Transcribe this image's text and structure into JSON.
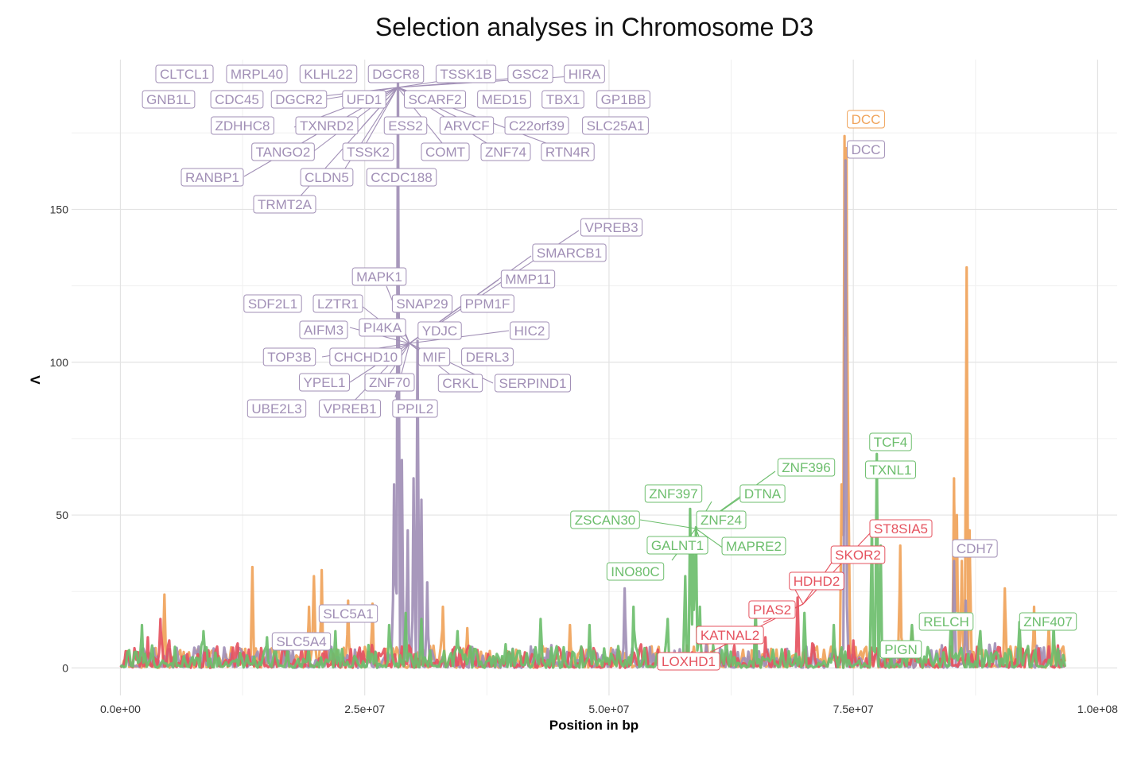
{
  "chart_data": {
    "type": "line",
    "title": "Selection analyses in Chromosome D3",
    "xlabel": "Position in bp",
    "ylabel": "Λ",
    "xlim": [
      -5000000,
      102000000
    ],
    "ylim": [
      -9,
      199
    ],
    "x_ticks": [
      {
        "value": 0,
        "label": "0.0e+00"
      },
      {
        "value": 25000000,
        "label": "2.5e+07"
      },
      {
        "value": 50000000,
        "label": "5.0e+07"
      },
      {
        "value": 75000000,
        "label": "7.5e+07"
      },
      {
        "value": 100000000,
        "label": "1.0e+08"
      }
    ],
    "y_ticks": [
      {
        "value": 0,
        "label": "0"
      },
      {
        "value": 50,
        "label": "50"
      },
      {
        "value": 100,
        "label": "100"
      },
      {
        "value": 150,
        "label": "150"
      }
    ],
    "grid": true,
    "legend": "none",
    "series": [
      {
        "color": "#F0A35A",
        "peaks": [
          [
            4500000,
            24
          ],
          [
            13500000,
            33
          ],
          [
            19300000,
            20
          ],
          [
            19800000,
            30
          ],
          [
            20600000,
            32
          ],
          [
            23300000,
            22
          ],
          [
            25800000,
            21
          ],
          [
            33000000,
            20
          ],
          [
            35500000,
            13
          ],
          [
            46000000,
            14
          ],
          [
            60000000,
            12
          ],
          [
            73800000,
            60
          ],
          [
            74100000,
            174
          ],
          [
            74300000,
            170
          ],
          [
            74500000,
            60
          ],
          [
            79800000,
            40
          ],
          [
            81000000,
            12
          ],
          [
            85300000,
            62
          ],
          [
            85600000,
            50
          ],
          [
            86100000,
            35
          ],
          [
            86600000,
            131
          ],
          [
            86900000,
            45
          ],
          [
            90500000,
            26
          ],
          [
            93500000,
            20
          ],
          [
            95000000,
            14
          ]
        ]
      },
      {
        "color": "#A18FB6",
        "peaks": [
          [
            2500000,
            5
          ],
          [
            8000000,
            7
          ],
          [
            15000000,
            6
          ],
          [
            24000000,
            6
          ],
          [
            28000000,
            60
          ],
          [
            28400000,
            195
          ],
          [
            28800000,
            68
          ],
          [
            29400000,
            45
          ],
          [
            30000000,
            62
          ],
          [
            30400000,
            107
          ],
          [
            30800000,
            55
          ],
          [
            31400000,
            28
          ],
          [
            34000000,
            6
          ],
          [
            42000000,
            7
          ],
          [
            51600000,
            26
          ],
          [
            60000000,
            7
          ],
          [
            70000000,
            6
          ],
          [
            74200000,
            166
          ],
          [
            85300000,
            35
          ],
          [
            86500000,
            22
          ],
          [
            89500000,
            8
          ],
          [
            95000000,
            6
          ]
        ]
      },
      {
        "color": "#E5535F",
        "peaks": [
          [
            2800000,
            10
          ],
          [
            4100000,
            16
          ],
          [
            5000000,
            9
          ],
          [
            12000000,
            8
          ],
          [
            17000000,
            8
          ],
          [
            21000000,
            7
          ],
          [
            34000000,
            6
          ],
          [
            45000000,
            6
          ],
          [
            55000000,
            6
          ],
          [
            62000000,
            5
          ],
          [
            66000000,
            10
          ],
          [
            69300000,
            23
          ],
          [
            70800000,
            8
          ],
          [
            75000000,
            9
          ],
          [
            78500000,
            6
          ],
          [
            85000000,
            7
          ],
          [
            90000000,
            6
          ],
          [
            95000000,
            7
          ]
        ]
      },
      {
        "color": "#6DBE6D",
        "peaks": [
          [
            2200000,
            14
          ],
          [
            8500000,
            12
          ],
          [
            15000000,
            10
          ],
          [
            22000000,
            12
          ],
          [
            27500000,
            14
          ],
          [
            29200000,
            18
          ],
          [
            30800000,
            16
          ],
          [
            34500000,
            12
          ],
          [
            43000000,
            16
          ],
          [
            48000000,
            14
          ],
          [
            52500000,
            20
          ],
          [
            56000000,
            16
          ],
          [
            57800000,
            30
          ],
          [
            58300000,
            52
          ],
          [
            58600000,
            38
          ],
          [
            58900000,
            46
          ],
          [
            59300000,
            20
          ],
          [
            62000000,
            12
          ],
          [
            65000000,
            20
          ],
          [
            70000000,
            18
          ],
          [
            73000000,
            14
          ],
          [
            76900000,
            48
          ],
          [
            77400000,
            70
          ],
          [
            77800000,
            40
          ],
          [
            81000000,
            14
          ],
          [
            85000000,
            17
          ],
          [
            88000000,
            12
          ],
          [
            92000000,
            15
          ],
          [
            95500000,
            14
          ]
        ]
      }
    ],
    "labels": [
      {
        "text": "CLTCL1",
        "color": "#A18FB6"
      },
      {
        "text": "MRPL40",
        "color": "#A18FB6"
      },
      {
        "text": "KLHL22",
        "color": "#A18FB6"
      },
      {
        "text": "DGCR8",
        "color": "#A18FB6"
      },
      {
        "text": "TSSK1B",
        "color": "#A18FB6"
      },
      {
        "text": "GSC2",
        "color": "#A18FB6"
      },
      {
        "text": "HIRA",
        "color": "#A18FB6"
      },
      {
        "text": "GNB1L",
        "color": "#A18FB6"
      },
      {
        "text": "CDC45",
        "color": "#A18FB6"
      },
      {
        "text": "DGCR2",
        "color": "#A18FB6"
      },
      {
        "text": "UFD1",
        "color": "#A18FB6"
      },
      {
        "text": "SCARF2",
        "color": "#A18FB6"
      },
      {
        "text": "MED15",
        "color": "#A18FB6"
      },
      {
        "text": "TBX1",
        "color": "#A18FB6"
      },
      {
        "text": "GP1BB",
        "color": "#A18FB6"
      },
      {
        "text": "ZDHHC8",
        "color": "#A18FB6"
      },
      {
        "text": "TXNRD2",
        "color": "#A18FB6"
      },
      {
        "text": "ESS2",
        "color": "#A18FB6"
      },
      {
        "text": "ARVCF",
        "color": "#A18FB6"
      },
      {
        "text": "C22orf39",
        "color": "#A18FB6"
      },
      {
        "text": "SLC25A1",
        "color": "#A18FB6"
      },
      {
        "text": "TANGO2",
        "color": "#A18FB6"
      },
      {
        "text": "TSSK2",
        "color": "#A18FB6"
      },
      {
        "text": "COMT",
        "color": "#A18FB6"
      },
      {
        "text": "ZNF74",
        "color": "#A18FB6"
      },
      {
        "text": "RTN4R",
        "color": "#A18FB6"
      },
      {
        "text": "RANBP1",
        "color": "#A18FB6"
      },
      {
        "text": "CLDN5",
        "color": "#A18FB6"
      },
      {
        "text": "CCDC188",
        "color": "#A18FB6"
      },
      {
        "text": "TRMT2A",
        "color": "#A18FB6"
      },
      {
        "text": "VPREB3",
        "color": "#A18FB6"
      },
      {
        "text": "SMARCB1",
        "color": "#A18FB6"
      },
      {
        "text": "MAPK1",
        "color": "#A18FB6"
      },
      {
        "text": "MMP11",
        "color": "#A18FB6"
      },
      {
        "text": "SDF2L1",
        "color": "#A18FB6"
      },
      {
        "text": "LZTR1",
        "color": "#A18FB6"
      },
      {
        "text": "SNAP29",
        "color": "#A18FB6"
      },
      {
        "text": "PPM1F",
        "color": "#A18FB6"
      },
      {
        "text": "AIFM3",
        "color": "#A18FB6"
      },
      {
        "text": "PI4KA",
        "color": "#A18FB6"
      },
      {
        "text": "YDJC",
        "color": "#A18FB6"
      },
      {
        "text": "HIC2",
        "color": "#A18FB6"
      },
      {
        "text": "TOP3B",
        "color": "#A18FB6"
      },
      {
        "text": "CHCHD10",
        "color": "#A18FB6"
      },
      {
        "text": "MIF",
        "color": "#A18FB6"
      },
      {
        "text": "DERL3",
        "color": "#A18FB6"
      },
      {
        "text": "YPEL1",
        "color": "#A18FB6"
      },
      {
        "text": "ZNF70",
        "color": "#A18FB6"
      },
      {
        "text": "CRKL",
        "color": "#A18FB6"
      },
      {
        "text": "SERPIND1",
        "color": "#A18FB6"
      },
      {
        "text": "UBE2L3",
        "color": "#A18FB6"
      },
      {
        "text": "VPREB1",
        "color": "#A18FB6"
      },
      {
        "text": "PPIL2",
        "color": "#A18FB6"
      },
      {
        "text": "DCC",
        "color": "#F0A35A"
      },
      {
        "text": "DCC",
        "color": "#A18FB6"
      },
      {
        "text": "TCF4",
        "color": "#6DBE6D"
      },
      {
        "text": "TXNL1",
        "color": "#6DBE6D"
      },
      {
        "text": "ZNF396",
        "color": "#6DBE6D"
      },
      {
        "text": "ZNF397",
        "color": "#6DBE6D"
      },
      {
        "text": "DTNA",
        "color": "#6DBE6D"
      },
      {
        "text": "ZSCAN30",
        "color": "#6DBE6D"
      },
      {
        "text": "ZNF24",
        "color": "#6DBE6D"
      },
      {
        "text": "GALNT1",
        "color": "#6DBE6D"
      },
      {
        "text": "MAPRE2",
        "color": "#6DBE6D"
      },
      {
        "text": "INO80C",
        "color": "#6DBE6D"
      },
      {
        "text": "ST8SIA5",
        "color": "#E5535F"
      },
      {
        "text": "SKOR2",
        "color": "#E5535F"
      },
      {
        "text": "HDHD2",
        "color": "#E5535F"
      },
      {
        "text": "CDH7",
        "color": "#A18FB6"
      },
      {
        "text": "SLC5A1",
        "color": "#A18FB6"
      },
      {
        "text": "SLC5A4",
        "color": "#A18FB6"
      },
      {
        "text": "PIAS2",
        "color": "#E5535F"
      },
      {
        "text": "KATNAL2",
        "color": "#E5535F"
      },
      {
        "text": "LOXHD1",
        "color": "#E5535F"
      },
      {
        "text": "RELCH",
        "color": "#6DBE6D"
      },
      {
        "text": "ZNF407",
        "color": "#6DBE6D"
      },
      {
        "text": "PIGN",
        "color": "#6DBE6D"
      }
    ]
  }
}
